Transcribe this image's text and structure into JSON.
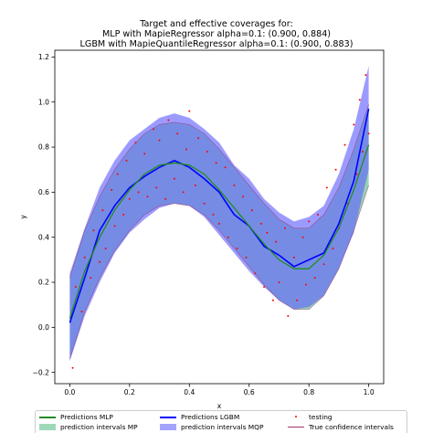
{
  "title_lines": [
    "Target and effective coverages for:",
    "MLP with MapieRegressor alpha=0.1: (0.900, 0.884)",
    "LGBM with MapieQuantileRegressor alpha=0.1: (0.900, 0.883)"
  ],
  "chart_data": {
    "type": "scatter",
    "title": "Target and effective coverages for:\nMLP with MapieRegressor alpha=0.1: (0.900, 0.884)\nLGBM with MapieQuantileRegressor alpha=0.1: (0.900, 0.883)",
    "xlabel": "x",
    "ylabel": "y",
    "xlim": [
      -0.05,
      1.05
    ],
    "ylim": [
      -0.25,
      1.23
    ],
    "xticks": [
      "0.0",
      "0.2",
      "0.4",
      "0.6",
      "0.8",
      "1.0"
    ],
    "yticks": [
      "−0.2",
      "0.0",
      "0.2",
      "0.4",
      "0.6",
      "0.8",
      "1.0",
      "1.2"
    ],
    "grid": false,
    "legend_position": "bottom",
    "x_sample": [
      0.0,
      0.05,
      0.1,
      0.15,
      0.2,
      0.25,
      0.3,
      0.35,
      0.4,
      0.45,
      0.5,
      0.55,
      0.6,
      0.65,
      0.7,
      0.75,
      0.8,
      0.85,
      0.9,
      0.95,
      1.0
    ],
    "series": [
      {
        "name": "Predictions MLP",
        "color": "#228b22",
        "values": [
          0.04,
          0.25,
          0.4,
          0.52,
          0.61,
          0.68,
          0.72,
          0.73,
          0.72,
          0.68,
          0.61,
          0.53,
          0.45,
          0.37,
          0.3,
          0.26,
          0.26,
          0.32,
          0.44,
          0.61,
          0.81
        ]
      },
      {
        "name": "prediction intervals MP",
        "color": "#3cb371",
        "lower": [
          -0.14,
          0.07,
          0.22,
          0.34,
          0.43,
          0.5,
          0.54,
          0.55,
          0.54,
          0.5,
          0.43,
          0.35,
          0.27,
          0.19,
          0.12,
          0.08,
          0.08,
          0.14,
          0.26,
          0.43,
          0.63
        ],
        "upper": [
          0.22,
          0.43,
          0.58,
          0.7,
          0.79,
          0.86,
          0.9,
          0.91,
          0.9,
          0.86,
          0.79,
          0.71,
          0.63,
          0.55,
          0.48,
          0.44,
          0.44,
          0.5,
          0.62,
          0.79,
          0.99
        ]
      },
      {
        "name": "Predictions LGBM",
        "color": "#0000ff",
        "values": [
          0.02,
          0.22,
          0.43,
          0.54,
          0.62,
          0.67,
          0.71,
          0.74,
          0.71,
          0.66,
          0.6,
          0.5,
          0.45,
          0.36,
          0.32,
          0.27,
          0.3,
          0.33,
          0.46,
          0.65,
          0.97
        ]
      },
      {
        "name": "prediction intervals MQP",
        "color": "#6666ff",
        "lower": [
          -0.15,
          0.05,
          0.2,
          0.33,
          0.42,
          0.48,
          0.53,
          0.55,
          0.54,
          0.49,
          0.41,
          0.33,
          0.25,
          0.18,
          0.12,
          0.08,
          0.09,
          0.14,
          0.26,
          0.42,
          0.7
        ],
        "upper": [
          0.24,
          0.44,
          0.62,
          0.74,
          0.83,
          0.88,
          0.93,
          0.95,
          0.93,
          0.88,
          0.82,
          0.72,
          0.66,
          0.57,
          0.51,
          0.47,
          0.49,
          0.54,
          0.68,
          0.88,
          1.16
        ]
      },
      {
        "name": "testing",
        "color": "#ff0000"
      },
      {
        "name": "True confidence intervals",
        "color": "#a0306a"
      }
    ],
    "testing_points": [
      {
        "x": 0.01,
        "y": -0.18
      },
      {
        "x": 0.02,
        "y": 0.18
      },
      {
        "x": 0.04,
        "y": 0.07
      },
      {
        "x": 0.05,
        "y": 0.31
      },
      {
        "x": 0.07,
        "y": 0.22
      },
      {
        "x": 0.08,
        "y": 0.43
      },
      {
        "x": 0.1,
        "y": 0.29
      },
      {
        "x": 0.11,
        "y": 0.52
      },
      {
        "x": 0.12,
        "y": 0.35
      },
      {
        "x": 0.14,
        "y": 0.61
      },
      {
        "x": 0.15,
        "y": 0.45
      },
      {
        "x": 0.16,
        "y": 0.68
      },
      {
        "x": 0.18,
        "y": 0.5
      },
      {
        "x": 0.19,
        "y": 0.74
      },
      {
        "x": 0.2,
        "y": 0.57
      },
      {
        "x": 0.22,
        "y": 0.82
      },
      {
        "x": 0.23,
        "y": 0.6
      },
      {
        "x": 0.25,
        "y": 0.77
      },
      {
        "x": 0.26,
        "y": 0.58
      },
      {
        "x": 0.28,
        "y": 0.88
      },
      {
        "x": 0.29,
        "y": 0.62
      },
      {
        "x": 0.3,
        "y": 0.83
      },
      {
        "x": 0.32,
        "y": 0.57
      },
      {
        "x": 0.33,
        "y": 0.92
      },
      {
        "x": 0.35,
        "y": 0.66
      },
      {
        "x": 0.36,
        "y": 0.86
      },
      {
        "x": 0.38,
        "y": 0.6
      },
      {
        "x": 0.39,
        "y": 0.79
      },
      {
        "x": 0.4,
        "y": 0.96
      },
      {
        "x": 0.42,
        "y": 0.63
      },
      {
        "x": 0.43,
        "y": 0.84
      },
      {
        "x": 0.45,
        "y": 0.55
      },
      {
        "x": 0.46,
        "y": 0.78
      },
      {
        "x": 0.48,
        "y": 0.5
      },
      {
        "x": 0.49,
        "y": 0.73
      },
      {
        "x": 0.5,
        "y": 0.46
      },
      {
        "x": 0.52,
        "y": 0.71
      },
      {
        "x": 0.53,
        "y": 0.4
      },
      {
        "x": 0.55,
        "y": 0.63
      },
      {
        "x": 0.56,
        "y": 0.35
      },
      {
        "x": 0.58,
        "y": 0.58
      },
      {
        "x": 0.59,
        "y": 0.31
      },
      {
        "x": 0.61,
        "y": 0.52
      },
      {
        "x": 0.62,
        "y": 0.24
      },
      {
        "x": 0.64,
        "y": 0.46
      },
      {
        "x": 0.65,
        "y": 0.18
      },
      {
        "x": 0.66,
        "y": 0.42
      },
      {
        "x": 0.68,
        "y": 0.12
      },
      {
        "x": 0.69,
        "y": 0.38
      },
      {
        "x": 0.7,
        "y": 0.2
      },
      {
        "x": 0.72,
        "y": 0.44
      },
      {
        "x": 0.73,
        "y": 0.05
      },
      {
        "x": 0.75,
        "y": 0.31
      },
      {
        "x": 0.76,
        "y": 0.12
      },
      {
        "x": 0.78,
        "y": 0.4
      },
      {
        "x": 0.79,
        "y": 0.19
      },
      {
        "x": 0.8,
        "y": 0.47
      },
      {
        "x": 0.82,
        "y": 0.22
      },
      {
        "x": 0.83,
        "y": 0.5
      },
      {
        "x": 0.85,
        "y": 0.28
      },
      {
        "x": 0.86,
        "y": 0.62
      },
      {
        "x": 0.88,
        "y": 0.35
      },
      {
        "x": 0.89,
        "y": 0.7
      },
      {
        "x": 0.9,
        "y": 0.44
      },
      {
        "x": 0.92,
        "y": 0.81
      },
      {
        "x": 0.93,
        "y": 0.55
      },
      {
        "x": 0.95,
        "y": 0.9
      },
      {
        "x": 0.96,
        "y": 0.68
      },
      {
        "x": 0.97,
        "y": 1.01
      },
      {
        "x": 0.98,
        "y": 0.78
      },
      {
        "x": 0.99,
        "y": 1.12
      },
      {
        "x": 1.0,
        "y": 0.86
      }
    ]
  },
  "legend": {
    "items": [
      {
        "label": "Predictions MLP"
      },
      {
        "label": "Predictions LGBM"
      },
      {
        "label": "testing"
      },
      {
        "label": "prediction intervals MP"
      },
      {
        "label": "prediction intervals MQP"
      },
      {
        "label": "True confidence intervals"
      }
    ]
  }
}
